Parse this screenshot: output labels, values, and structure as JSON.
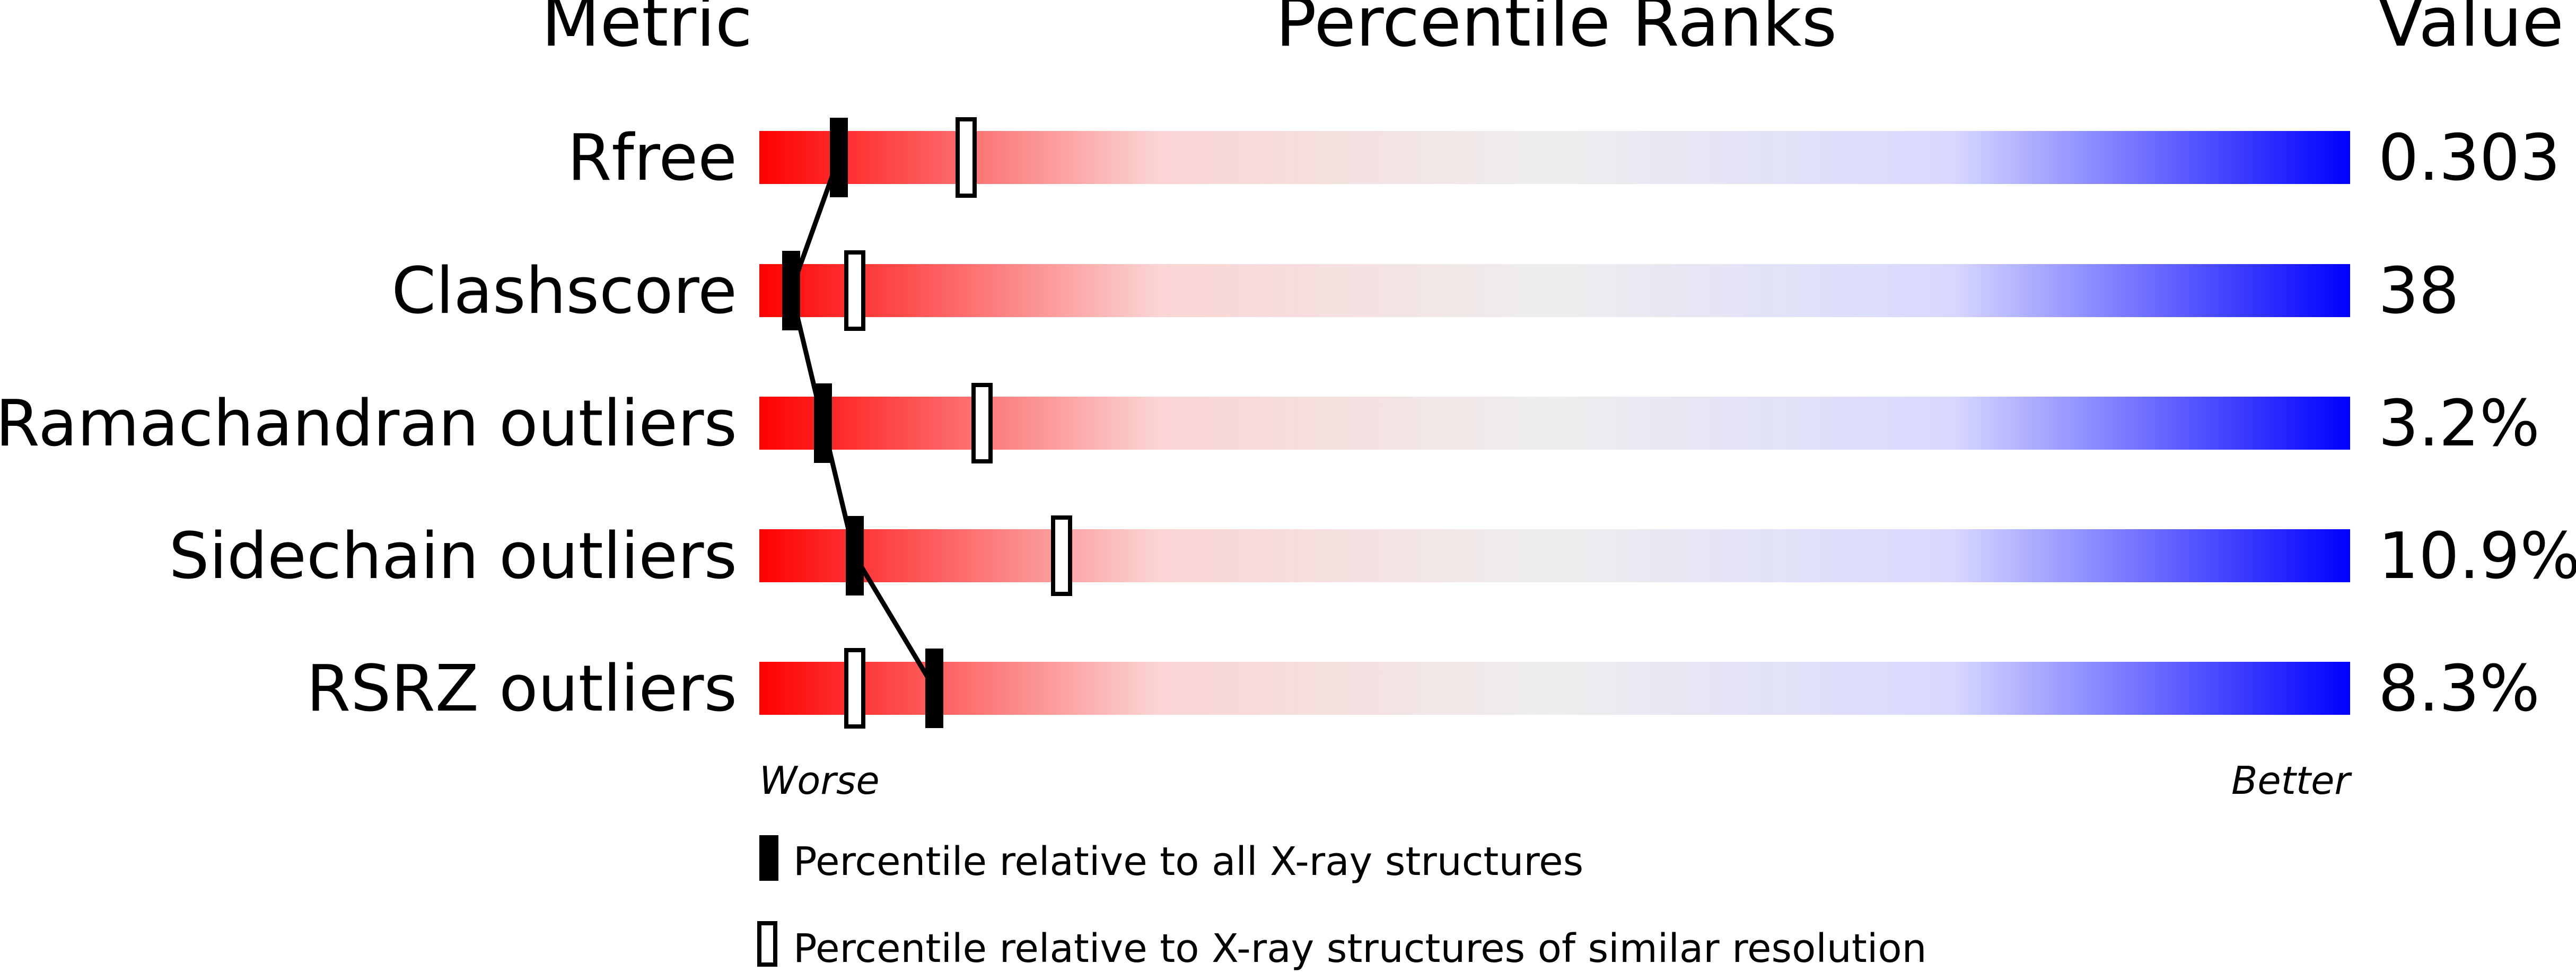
{
  "headers": {
    "metric": "Metric",
    "title": "Percentile Ranks",
    "value": "Value"
  },
  "axis": {
    "worse": "Worse",
    "better": "Better"
  },
  "legend": {
    "all": "Percentile relative to all X-ray structures",
    "similar": "Percentile relative to X-ray structures of similar resolution"
  },
  "colors": {
    "worst": "#ff0000",
    "middle": "#eeeeee",
    "light_blue": "#d8d8ff",
    "best": "#0000ff",
    "marker": "#000000"
  },
  "chart_data": {
    "type": "bar",
    "title": "Percentile Ranks",
    "categories": [
      "Rfree",
      "Clashscore",
      "Ramachandran outliers",
      "Sidechain outliers",
      "RSRZ outliers"
    ],
    "display_values": [
      "0.303",
      "38",
      "3.2%",
      "10.9%",
      "8.3%"
    ],
    "series": [
      {
        "name": "Percentile relative to all X-ray structures",
        "values": [
          5,
          2,
          4,
          6,
          11
        ]
      },
      {
        "name": "Percentile relative to X-ray structures of similar resolution",
        "values": [
          13,
          6,
          14,
          19,
          6
        ]
      }
    ],
    "ylim": [
      0,
      100
    ],
    "connected_series": "Percentile relative to all X-ray structures"
  }
}
